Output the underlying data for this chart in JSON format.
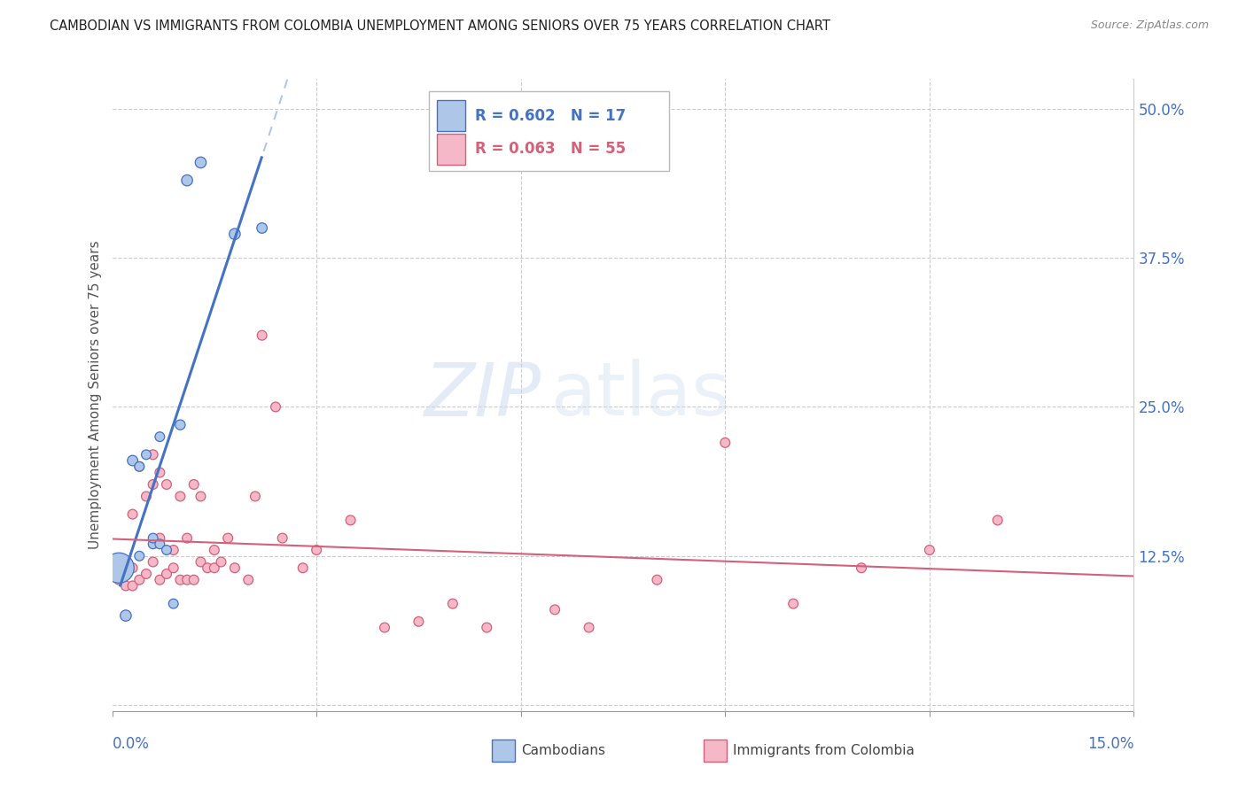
{
  "title": "CAMBODIAN VS IMMIGRANTS FROM COLOMBIA UNEMPLOYMENT AMONG SENIORS OVER 75 YEARS CORRELATION CHART",
  "source": "Source: ZipAtlas.com",
  "ylabel": "Unemployment Among Seniors over 75 years",
  "color_cambodian_fill": "#aec6e8",
  "color_cambodian_edge": "#4472c4",
  "color_colombia_fill": "#f4b8c8",
  "color_colombia_edge": "#d4607a",
  "color_line_cambodian": "#4472c4",
  "color_line_cambodian_dash": "#b0c8e8",
  "color_line_colombia": "#d4607a",
  "color_right_axis": "#4472c4",
  "xmin": 0.0,
  "xmax": 0.15,
  "ymin": -0.005,
  "ymax": 0.525,
  "grid_yticks": [
    0.0,
    0.125,
    0.25,
    0.375,
    0.5
  ],
  "grid_xticks": [
    0.0,
    0.03,
    0.06,
    0.09,
    0.12,
    0.15
  ],
  "right_ytick_labels": [
    "",
    "12.5%",
    "25.0%",
    "37.5%",
    "50.0%"
  ],
  "R_cambodian": "0.602",
  "N_cambodian": "17",
  "R_colombia": "0.063",
  "N_colombia": "55",
  "watermark": "ZIPatlas",
  "cambodian_x": [
    0.001,
    0.002,
    0.003,
    0.004,
    0.004,
    0.005,
    0.006,
    0.006,
    0.007,
    0.007,
    0.008,
    0.009,
    0.01,
    0.011,
    0.013,
    0.018,
    0.022
  ],
  "cambodian_y": [
    0.115,
    0.075,
    0.205,
    0.125,
    0.2,
    0.21,
    0.135,
    0.14,
    0.135,
    0.225,
    0.13,
    0.085,
    0.235,
    0.44,
    0.455,
    0.395,
    0.4
  ],
  "cambodian_size": [
    600,
    80,
    70,
    60,
    60,
    60,
    60,
    60,
    60,
    60,
    60,
    60,
    65,
    80,
    80,
    80,
    70
  ],
  "colombia_x": [
    0.001,
    0.001,
    0.002,
    0.002,
    0.003,
    0.003,
    0.003,
    0.004,
    0.004,
    0.005,
    0.005,
    0.006,
    0.006,
    0.006,
    0.007,
    0.007,
    0.007,
    0.008,
    0.008,
    0.009,
    0.009,
    0.01,
    0.01,
    0.011,
    0.011,
    0.012,
    0.012,
    0.013,
    0.013,
    0.014,
    0.015,
    0.015,
    0.016,
    0.017,
    0.018,
    0.02,
    0.021,
    0.022,
    0.024,
    0.025,
    0.028,
    0.03,
    0.035,
    0.04,
    0.045,
    0.05,
    0.055,
    0.065,
    0.07,
    0.08,
    0.09,
    0.1,
    0.11,
    0.12,
    0.13
  ],
  "colombia_y": [
    0.115,
    0.105,
    0.1,
    0.115,
    0.1,
    0.115,
    0.16,
    0.105,
    0.2,
    0.11,
    0.175,
    0.12,
    0.185,
    0.21,
    0.105,
    0.14,
    0.195,
    0.11,
    0.185,
    0.115,
    0.13,
    0.105,
    0.175,
    0.105,
    0.14,
    0.105,
    0.185,
    0.12,
    0.175,
    0.115,
    0.13,
    0.115,
    0.12,
    0.14,
    0.115,
    0.105,
    0.175,
    0.31,
    0.25,
    0.14,
    0.115,
    0.13,
    0.155,
    0.065,
    0.07,
    0.085,
    0.065,
    0.08,
    0.065,
    0.105,
    0.22,
    0.085,
    0.115,
    0.13,
    0.155
  ],
  "colombia_size": [
    55,
    55,
    55,
    55,
    55,
    55,
    55,
    55,
    55,
    55,
    55,
    55,
    55,
    55,
    55,
    55,
    55,
    55,
    55,
    55,
    55,
    55,
    55,
    55,
    55,
    55,
    55,
    55,
    55,
    55,
    55,
    55,
    55,
    55,
    55,
    55,
    55,
    55,
    55,
    55,
    55,
    55,
    55,
    55,
    55,
    55,
    55,
    55,
    55,
    55,
    55,
    55,
    55,
    55,
    55
  ]
}
